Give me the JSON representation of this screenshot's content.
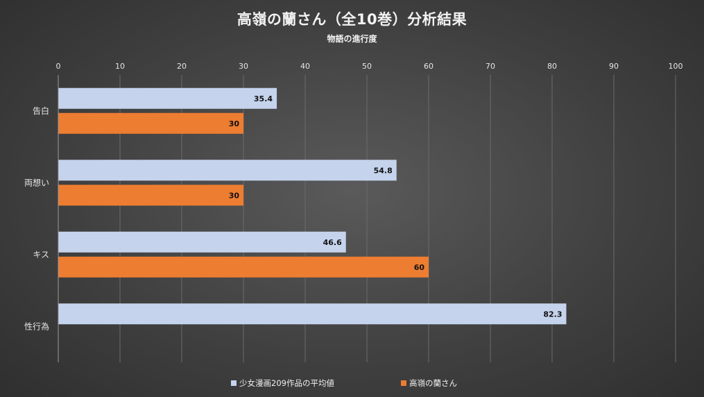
{
  "title": "高嶺の蘭さん（全10巻）分析結果",
  "subtitle": "物語の進行度",
  "chart_data": {
    "type": "bar",
    "orientation": "horizontal",
    "title": "高嶺の蘭さん（全10巻）分析結果",
    "subtitle": "物語の進行度",
    "categories": [
      "告白",
      "両想い",
      "キス",
      "性行為"
    ],
    "series": [
      {
        "name": "少女漫画209作品の平均値",
        "values": [
          35.4,
          54.8,
          46.6,
          82.3
        ],
        "color": "#c5d3ec"
      },
      {
        "name": "高嶺の蘭さん",
        "values": [
          30,
          30,
          60,
          null
        ],
        "color": "#ed7d31"
      }
    ],
    "xlim": [
      0,
      100
    ],
    "xticks": [
      0,
      10,
      20,
      30,
      40,
      50,
      60,
      70,
      80,
      90,
      100
    ],
    "xaxis_position": "top",
    "grid": true,
    "data_labels": true,
    "legend": "bottom"
  }
}
